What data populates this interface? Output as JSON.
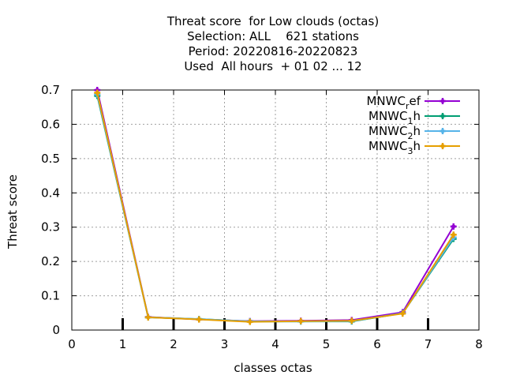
{
  "chart_data": {
    "type": "line",
    "title_lines": [
      "Threat score  for Low clouds (octas)",
      "Selection: ALL    621 stations",
      "Period: 20220816-20220823",
      "Used  All hours  + 01 02 ... 12"
    ],
    "xlabel": "classes octas",
    "ylabel": "Threat score",
    "xlim": [
      0,
      8
    ],
    "ylim": [
      0,
      0.7
    ],
    "xticks": [
      "0",
      "1",
      "2",
      "3",
      "4",
      "5",
      "6",
      "7",
      "8"
    ],
    "yticks": [
      "0",
      "0.1",
      "0.2",
      "0.3",
      "0.4",
      "0.5",
      "0.6",
      "0.7"
    ],
    "grid": true,
    "legend_position": "top-right",
    "x": [
      0.5,
      1.5,
      2.5,
      3.5,
      4.5,
      5.5,
      6.5,
      7.5
    ],
    "series": [
      {
        "name": "MNWC",
        "sub": "r",
        "suffix": "ef",
        "color": "#9400d3",
        "marker": "plus",
        "values": [
          0.7,
          0.038,
          0.031,
          0.026,
          0.027,
          0.029,
          0.052,
          0.302
        ]
      },
      {
        "name": "MNWC",
        "sub": "1",
        "suffix": "h",
        "color": "#009e73",
        "marker": "plus",
        "values": [
          0.683,
          0.037,
          0.032,
          0.025,
          0.025,
          0.025,
          0.049,
          0.266
        ]
      },
      {
        "name": "MNWC",
        "sub": "2",
        "suffix": "h",
        "color": "#56b4e9",
        "marker": "plus",
        "values": [
          0.687,
          0.037,
          0.032,
          0.025,
          0.025,
          0.026,
          0.049,
          0.27
        ]
      },
      {
        "name": "MNWC",
        "sub": "3",
        "suffix": "h",
        "color": "#e69f00",
        "marker": "plus",
        "values": [
          0.692,
          0.037,
          0.031,
          0.024,
          0.026,
          0.027,
          0.048,
          0.278
        ]
      }
    ],
    "bars_note_ticks": [
      1,
      2,
      3,
      4,
      5,
      6,
      7
    ]
  }
}
